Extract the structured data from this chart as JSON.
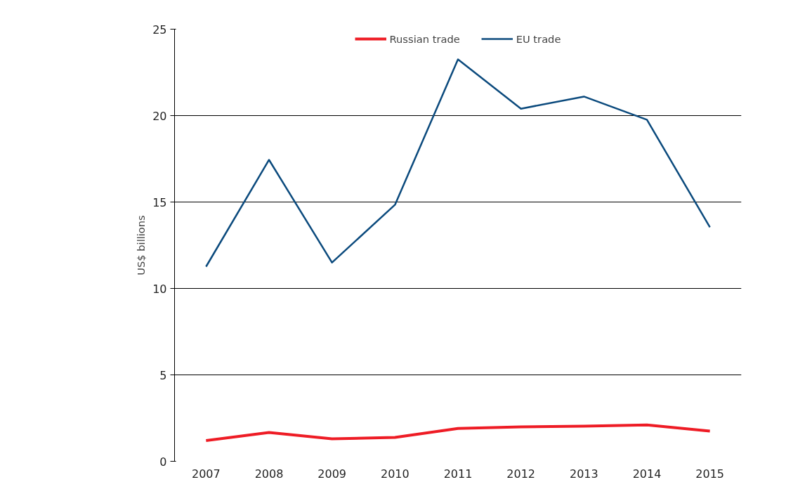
{
  "chart_data": {
    "type": "line",
    "ylabel": "US$ billions",
    "categories": [
      "2007",
      "2008",
      "2009",
      "2010",
      "2011",
      "2012",
      "2013",
      "2014",
      "2015"
    ],
    "series": [
      {
        "name": "Russian trade",
        "color": "#ee1c25",
        "values": [
          1.2,
          1.67,
          1.3,
          1.38,
          1.9,
          1.99,
          2.03,
          2.1,
          1.75
        ]
      },
      {
        "name": "EU trade",
        "color": "#0b4a7d",
        "values": [
          11.26,
          17.44,
          11.5,
          14.84,
          23.25,
          20.4,
          21.1,
          19.76,
          13.54
        ]
      }
    ],
    "ylim": [
      0,
      25
    ],
    "yticks": [
      0,
      5,
      10,
      15,
      20,
      25
    ],
    "grid": "y",
    "legend": "top",
    "marker": "none",
    "line_style": "solid"
  }
}
